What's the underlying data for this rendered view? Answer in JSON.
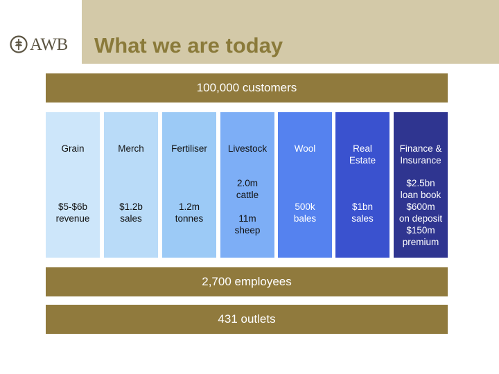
{
  "header": {
    "logo_text": "AWB",
    "title": "What we are today"
  },
  "colors": {
    "header_band": "#d3c9a8",
    "title": "#8a7a3a",
    "bar": "#907a3d",
    "columns": [
      "#cde6fa",
      "#b9dbf8",
      "#9ccaf6",
      "#7daef6",
      "#5582ef",
      "#3a52cf",
      "#2f3590"
    ]
  },
  "top_bar": "100,000 customers",
  "columns": [
    {
      "name_lines": [
        "Grain"
      ],
      "value_lines": [
        "$5-$6b",
        "revenue"
      ]
    },
    {
      "name_lines": [
        "Merch"
      ],
      "value_lines": [
        "$1.2b",
        "sales"
      ]
    },
    {
      "name_lines": [
        "Fertiliser"
      ],
      "value_lines": [
        "1.2m",
        "tonnes"
      ]
    },
    {
      "name_lines": [
        "Livestock"
      ],
      "value_lines": [
        "2.0m",
        "cattle",
        "11m",
        "sheep"
      ]
    },
    {
      "name_lines": [
        "Wool"
      ],
      "value_lines": [
        "500k",
        "bales"
      ]
    },
    {
      "name_lines": [
        "Real",
        "Estate"
      ],
      "value_lines": [
        "$1bn",
        "sales"
      ]
    },
    {
      "name_lines": [
        "Finance &",
        "Insurance"
      ],
      "value_lines": [
        "$2.5bn",
        "loan book",
        "$600m",
        "on deposit",
        "$150m",
        "premium"
      ]
    }
  ],
  "employees_bar": "2,700 employees",
  "outlets_bar": "431 outlets"
}
